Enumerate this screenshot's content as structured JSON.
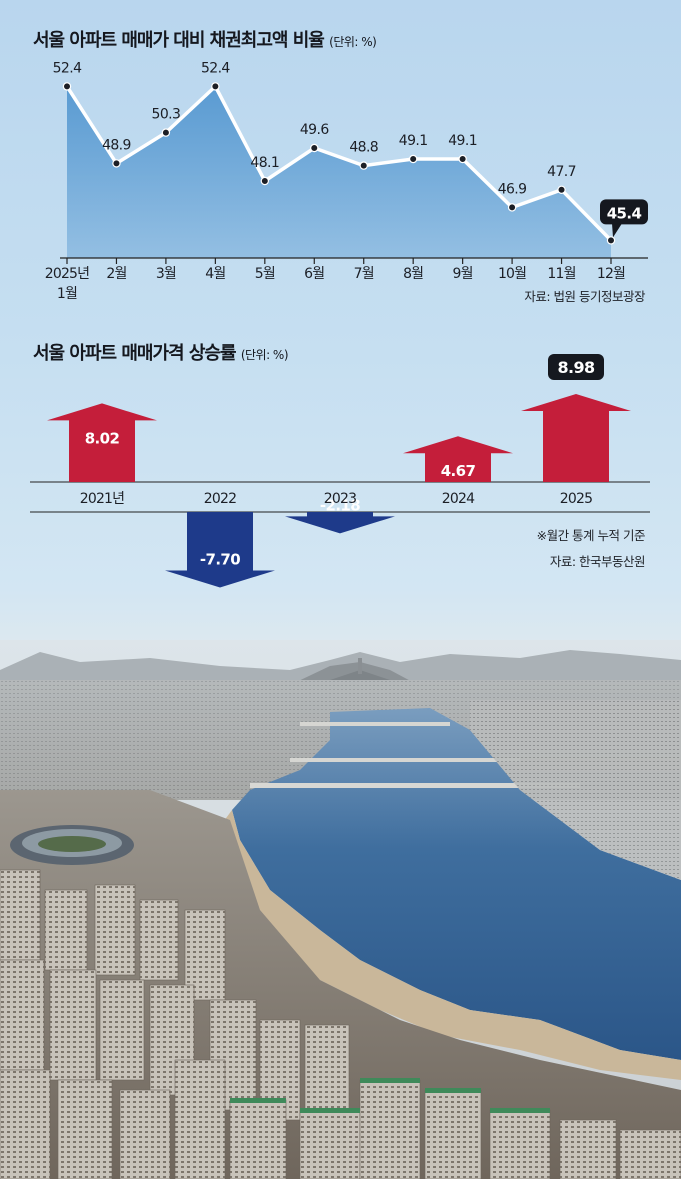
{
  "chart_data": [
    {
      "type": "area",
      "title": "서울 아파트 매매가 대비 채권최고액 비율",
      "unit": "(단위: %)",
      "categories": [
        "2025년 1월",
        "2월",
        "3월",
        "4월",
        "5월",
        "6월",
        "7월",
        "8월",
        "9월",
        "10월",
        "11월",
        "12월"
      ],
      "first_label_lines": [
        "2025년",
        "1월"
      ],
      "values": [
        52.4,
        48.9,
        50.3,
        52.4,
        48.1,
        49.6,
        48.8,
        49.1,
        49.1,
        46.9,
        47.7,
        45.4
      ],
      "value_labels": [
        "52.4",
        "48.9",
        "50.3",
        "52.4",
        "48.1",
        "49.6",
        "48.8",
        "49.1",
        "49.1",
        "46.9",
        "47.7",
        "45.4"
      ],
      "highlight_index": 11,
      "ylim": [
        44.6,
        53.6
      ],
      "source": "자료: 법원 등기정보광장",
      "fill_color": "#5a9bd2",
      "line_color": "#ffffff"
    },
    {
      "type": "bar",
      "title": "서울 아파트 매매가격 상승률",
      "unit": "(단위: %)",
      "categories": [
        "2021년",
        "2022",
        "2023",
        "2024",
        "2025"
      ],
      "values": [
        8.02,
        -7.7,
        -2.18,
        4.67,
        8.98
      ],
      "value_labels": [
        "8.02",
        "-7.70",
        "-2.18",
        "4.67",
        "8.98"
      ],
      "highlight_index": 4,
      "note": "※월간 통계 누적 기준",
      "source": "자료: 한국부동산원",
      "positive_color": "#c41e3a",
      "negative_color": "#1e3a8a"
    }
  ]
}
